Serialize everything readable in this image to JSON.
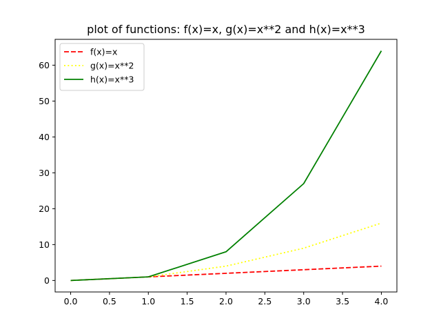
{
  "chart_data": {
    "type": "line",
    "title": "plot of functions: f(x)=x, g(x)=x**2 and h(x)=x**3",
    "xlabel": "",
    "ylabel": "",
    "x": [
      0,
      1,
      2,
      3,
      4
    ],
    "xlim": [
      -0.2,
      4.2
    ],
    "ylim": [
      -3.2,
      67.2
    ],
    "xticks": [
      0.0,
      0.5,
      1.0,
      1.5,
      2.0,
      2.5,
      3.0,
      3.5,
      4.0
    ],
    "xtick_labels": [
      "0.0",
      "0.5",
      "1.0",
      "1.5",
      "2.0",
      "2.5",
      "3.0",
      "3.5",
      "4.0"
    ],
    "yticks": [
      0,
      10,
      20,
      30,
      40,
      50,
      60
    ],
    "ytick_labels": [
      "0",
      "10",
      "20",
      "30",
      "40",
      "50",
      "60"
    ],
    "grid": false,
    "legend_position": "upper left",
    "series": [
      {
        "name": "f(x)=x",
        "values": [
          0,
          1,
          2,
          3,
          4
        ],
        "color": "#ff0000",
        "style": "dashed"
      },
      {
        "name": "g(x)=x**2",
        "values": [
          0,
          1,
          4,
          9,
          16
        ],
        "color": "#ffff00",
        "style": "dotted"
      },
      {
        "name": "h(x)=x**3",
        "values": [
          0,
          1,
          8,
          27,
          64
        ],
        "color": "#008000",
        "style": "solid"
      }
    ]
  }
}
